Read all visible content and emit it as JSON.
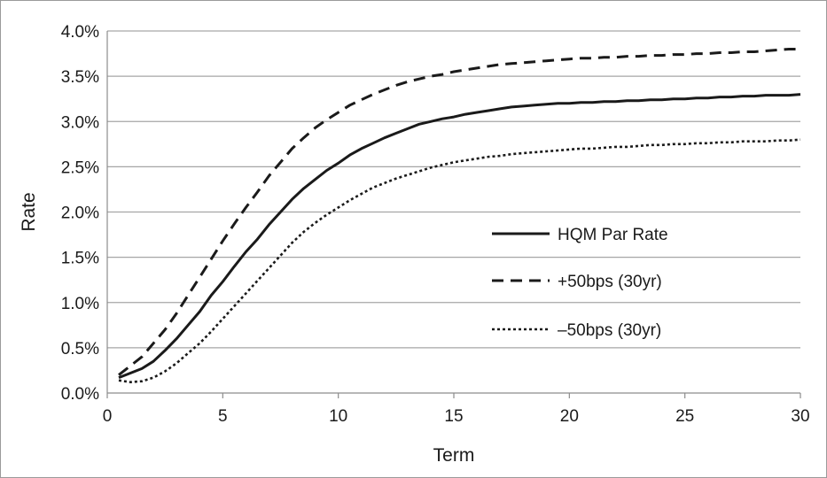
{
  "chart_data": {
    "type": "line",
    "xlabel": "Term",
    "ylabel": "Rate",
    "xlim": [
      0,
      30
    ],
    "ylim": [
      0,
      4.0
    ],
    "x_ticks": [
      0,
      5,
      10,
      15,
      20,
      25,
      30
    ],
    "y_ticks": [
      0.0,
      0.5,
      1.0,
      1.5,
      2.0,
      2.5,
      3.0,
      3.5,
      4.0
    ],
    "y_tick_labels": [
      "0.0%",
      "0.5%",
      "1.0%",
      "1.5%",
      "2.0%",
      "2.5%",
      "3.0%",
      "3.5%",
      "4.0%"
    ],
    "x_tick_labels": [
      "0",
      "5",
      "10",
      "15",
      "20",
      "25",
      "30"
    ],
    "grid": "horizontal",
    "legend_position": "right-center",
    "x": [
      0.5,
      1,
      1.5,
      2,
      2.5,
      3,
      3.5,
      4,
      4.5,
      5,
      5.5,
      6,
      6.5,
      7,
      7.5,
      8,
      8.5,
      9,
      9.5,
      10,
      10.5,
      11,
      11.5,
      12,
      12.5,
      13,
      13.5,
      14,
      14.5,
      15,
      15.5,
      16,
      16.5,
      17,
      17.5,
      18,
      18.5,
      19,
      19.5,
      20,
      20.5,
      21,
      21.5,
      22,
      22.5,
      23,
      23.5,
      24,
      24.5,
      25,
      25.5,
      26,
      26.5,
      27,
      27.5,
      28,
      28.5,
      29,
      29.5,
      30
    ],
    "series": [
      {
        "name": "HQM Par Rate",
        "style": "solid",
        "color": "#1a1a1a",
        "values": [
          0.17,
          0.22,
          0.27,
          0.35,
          0.47,
          0.6,
          0.75,
          0.9,
          1.08,
          1.23,
          1.4,
          1.56,
          1.7,
          1.86,
          2.0,
          2.14,
          2.26,
          2.36,
          2.46,
          2.54,
          2.63,
          2.7,
          2.76,
          2.82,
          2.87,
          2.92,
          2.97,
          3.0,
          3.03,
          3.05,
          3.08,
          3.1,
          3.12,
          3.14,
          3.16,
          3.17,
          3.18,
          3.19,
          3.2,
          3.2,
          3.21,
          3.21,
          3.22,
          3.22,
          3.23,
          3.23,
          3.24,
          3.24,
          3.25,
          3.25,
          3.26,
          3.26,
          3.27,
          3.27,
          3.28,
          3.28,
          3.29,
          3.29,
          3.29,
          3.3
        ]
      },
      {
        "name": "+50bps (30yr)",
        "style": "dashed",
        "color": "#1a1a1a",
        "values": [
          0.2,
          0.3,
          0.4,
          0.55,
          0.7,
          0.88,
          1.08,
          1.28,
          1.48,
          1.68,
          1.87,
          2.05,
          2.22,
          2.4,
          2.55,
          2.7,
          2.82,
          2.93,
          3.02,
          3.1,
          3.18,
          3.24,
          3.3,
          3.35,
          3.4,
          3.44,
          3.47,
          3.5,
          3.52,
          3.55,
          3.57,
          3.59,
          3.61,
          3.63,
          3.64,
          3.65,
          3.66,
          3.67,
          3.68,
          3.69,
          3.7,
          3.7,
          3.71,
          3.71,
          3.72,
          3.72,
          3.73,
          3.73,
          3.74,
          3.74,
          3.75,
          3.75,
          3.76,
          3.76,
          3.77,
          3.77,
          3.78,
          3.79,
          3.8,
          3.8
        ]
      },
      {
        "name": "–50bps (30yr)",
        "style": "dotted",
        "color": "#1a1a1a",
        "values": [
          0.14,
          0.12,
          0.13,
          0.17,
          0.24,
          0.33,
          0.44,
          0.55,
          0.68,
          0.82,
          0.96,
          1.1,
          1.24,
          1.38,
          1.52,
          1.66,
          1.78,
          1.88,
          1.97,
          2.05,
          2.13,
          2.2,
          2.27,
          2.32,
          2.37,
          2.41,
          2.45,
          2.49,
          2.52,
          2.55,
          2.57,
          2.59,
          2.61,
          2.62,
          2.64,
          2.65,
          2.66,
          2.67,
          2.68,
          2.69,
          2.7,
          2.7,
          2.71,
          2.72,
          2.72,
          2.73,
          2.74,
          2.74,
          2.75,
          2.75,
          2.76,
          2.76,
          2.77,
          2.77,
          2.78,
          2.78,
          2.78,
          2.79,
          2.79,
          2.8
        ]
      }
    ]
  }
}
